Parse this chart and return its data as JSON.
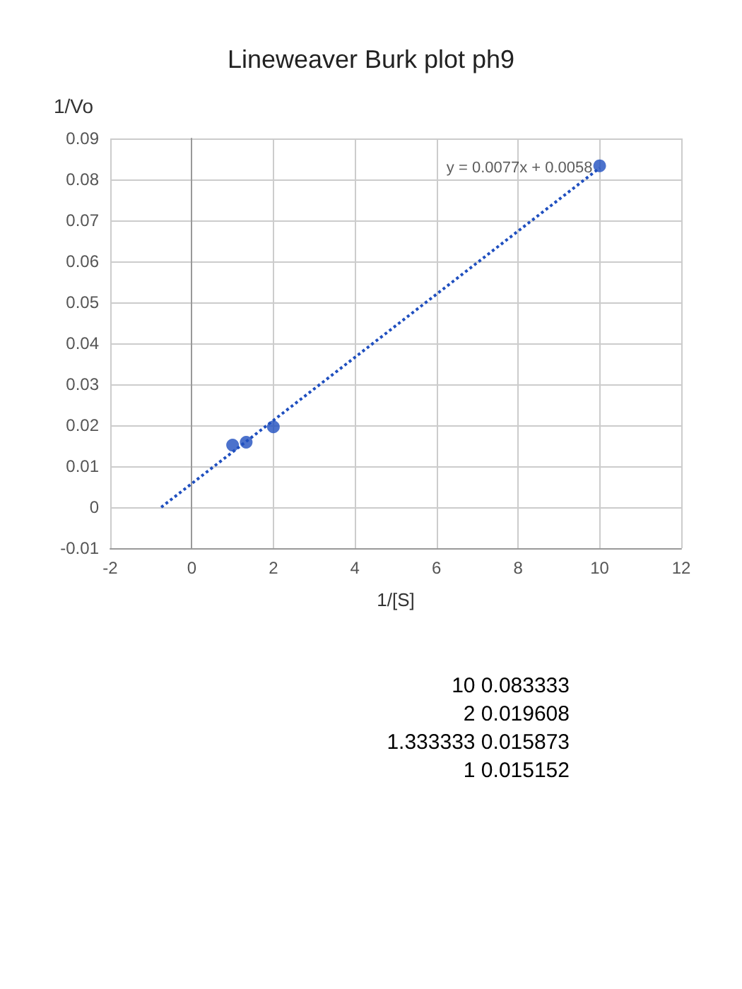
{
  "chart_data": {
    "type": "scatter",
    "title": "Lineweaver Burk plot ph9",
    "xlabel": "1/[S]",
    "ylabel": "1/Vo",
    "x": [
      10,
      2,
      1.333333,
      1
    ],
    "series": [
      {
        "color": "#1f4fbf",
        "values": [
          0.083333,
          0.019608,
          0.015873,
          0.015152
        ]
      },
      {
        "type": "line",
        "color": "#1f4fbf",
        "x": [
          -0.75,
          10
        ],
        "values": [
          0,
          0.0828
        ],
        "line_style": "dotted",
        "marker": "none"
      }
    ],
    "annotations": [
      {
        "text": "y = 0.0077x + 0.0058",
        "x": 10,
        "y": 0.0828
      },
      "10 0.083333",
      "2 0.019608",
      "1.333333 0.015873",
      "1 0.015152"
    ],
    "xlim": [
      -2,
      12
    ],
    "xticks": [
      -2,
      0,
      2,
      4,
      6,
      8,
      10,
      12
    ],
    "ylim": [
      -0.01,
      0.09
    ],
    "yticks": [
      -0.01,
      0,
      0.01,
      0.02,
      0.03,
      0.04,
      0.05,
      0.06,
      0.07,
      0.08,
      0.09
    ],
    "grid": true,
    "marker": "circle"
  }
}
